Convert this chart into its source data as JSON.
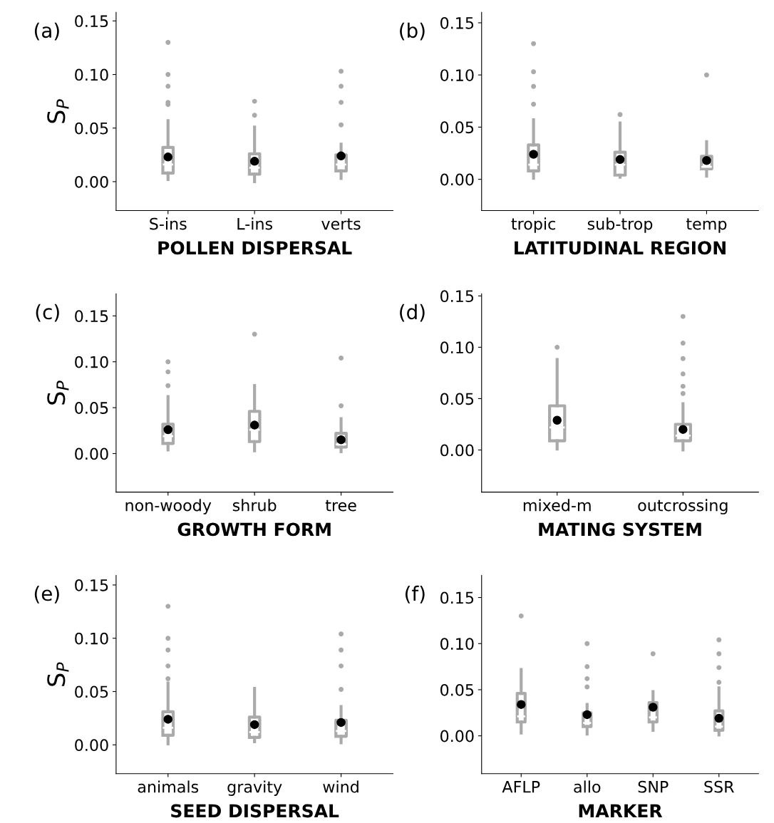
{
  "chart_data": [
    {
      "type": "box",
      "title": "(a)",
      "ylabel": "S$_{P}$",
      "xlabel": "POLLEN DISPERSAL",
      "categories": [
        "S-ins",
        "L-ins",
        "verts"
      ],
      "ylim": [
        -0.027,
        0.158
      ],
      "yticks": [
        {
          "value": 0,
          "label": "0.00"
        },
        {
          "value": 0.05,
          "label": "0.05"
        },
        {
          "value": 0.1,
          "label": "0.10"
        },
        {
          "value": 0.15,
          "label": "0.15"
        }
      ],
      "grid": false,
      "color": "#aaaaaa",
      "boxes": [
        {
          "low": 0.002,
          "q1": 0.008,
          "median": 0.016,
          "q3": 0.032,
          "high": 0.057,
          "mean": 0.023,
          "outliers": [
            0.072,
            0.074,
            0.089,
            0.1,
            0.13
          ]
        },
        {
          "low": 0.0,
          "q1": 0.007,
          "median": 0.013,
          "q3": 0.026,
          "high": 0.051,
          "mean": 0.019,
          "outliers": [
            0.062,
            0.075
          ]
        },
        {
          "low": 0.003,
          "q1": 0.01,
          "median": 0.016,
          "q3": 0.025,
          "high": 0.035,
          "mean": 0.024,
          "outliers": [
            0.053,
            0.074,
            0.089,
            0.103
          ]
        }
      ]
    },
    {
      "type": "box",
      "title": "(b)",
      "xlabel": "LATITUDINAL REGION",
      "categories": [
        "tropic",
        "sub-trop",
        "temp"
      ],
      "ylim": [
        -0.03,
        0.16
      ],
      "yticks": [
        {
          "value": 0,
          "label": "0.00"
        },
        {
          "value": 0.05,
          "label": "0.05"
        },
        {
          "value": 0.1,
          "label": "0.10"
        },
        {
          "value": 0.15,
          "label": "0.15"
        }
      ],
      "grid": false,
      "color": "#aaaaaa",
      "boxes": [
        {
          "low": 0.001,
          "q1": 0.008,
          "median": 0.014,
          "q3": 0.033,
          "high": 0.057,
          "mean": 0.024,
          "outliers": [
            0.072,
            0.089,
            0.103,
            0.13
          ]
        },
        {
          "low": 0.002,
          "q1": 0.004,
          "median": 0.014,
          "q3": 0.026,
          "high": 0.054,
          "mean": 0.019,
          "outliers": [
            0.062
          ]
        },
        {
          "low": 0.003,
          "q1": 0.01,
          "median": 0.012,
          "q3": 0.022,
          "high": 0.036,
          "mean": 0.018,
          "outliers": [
            0.1
          ]
        }
      ]
    },
    {
      "type": "box",
      "title": "(c)",
      "ylabel": "S$_{P}$",
      "xlabel": "GROWTH FORM",
      "categories": [
        "non-woody",
        "shrub",
        "tree"
      ],
      "ylim": [
        -0.042,
        0.174
      ],
      "yticks": [
        {
          "value": 0,
          "label": "0.00"
        },
        {
          "value": 0.05,
          "label": "0.05"
        },
        {
          "value": 0.1,
          "label": "0.10"
        },
        {
          "value": 0.15,
          "label": "0.15"
        }
      ],
      "grid": false,
      "color": "#aaaaaa",
      "boxes": [
        {
          "low": 0.004,
          "q1": 0.011,
          "median": 0.019,
          "q3": 0.032,
          "high": 0.062,
          "mean": 0.026,
          "outliers": [
            0.074,
            0.089,
            0.1
          ]
        },
        {
          "low": 0.003,
          "q1": 0.013,
          "median": 0.026,
          "q3": 0.046,
          "high": 0.074,
          "mean": 0.031,
          "outliers": [
            0.13
          ]
        },
        {
          "low": 0.002,
          "q1": 0.007,
          "median": 0.01,
          "q3": 0.022,
          "high": 0.038,
          "mean": 0.015,
          "outliers": [
            0.052,
            0.104
          ]
        }
      ]
    },
    {
      "type": "box",
      "title": "(d)",
      "xlabel": "MATING SYSTEM",
      "categories": [
        "mixed-m",
        "outcrossing"
      ],
      "ylim": [
        -0.041,
        0.152
      ],
      "yticks": [
        {
          "value": 0,
          "label": "0.00"
        },
        {
          "value": 0.05,
          "label": "0.05"
        },
        {
          "value": 0.1,
          "label": "0.10"
        },
        {
          "value": 0.15,
          "label": "0.15"
        }
      ],
      "grid": false,
      "color": "#aaaaaa",
      "boxes": [
        {
          "low": 0.001,
          "q1": 0.009,
          "median": 0.022,
          "q3": 0.043,
          "high": 0.088,
          "mean": 0.029,
          "outliers": [
            0.1
          ]
        },
        {
          "low": 0.0,
          "q1": 0.009,
          "median": 0.014,
          "q3": 0.025,
          "high": 0.045,
          "mean": 0.02,
          "outliers": [
            0.055,
            0.062,
            0.074,
            0.089,
            0.104,
            0.13
          ]
        }
      ]
    },
    {
      "type": "box",
      "title": "(e)",
      "ylabel": "S$_{P}$",
      "xlabel": "SEED DISPERSAL",
      "categories": [
        "animals",
        "gravity",
        "wind"
      ],
      "ylim": [
        -0.027,
        0.159
      ],
      "yticks": [
        {
          "value": 0,
          "label": "0.00"
        },
        {
          "value": 0.05,
          "label": "0.05"
        },
        {
          "value": 0.1,
          "label": "0.10"
        },
        {
          "value": 0.15,
          "label": "0.15"
        }
      ],
      "grid": false,
      "color": "#aaaaaa",
      "boxes": [
        {
          "low": 0.001,
          "q1": 0.009,
          "median": 0.016,
          "q3": 0.031,
          "high": 0.058,
          "mean": 0.024,
          "outliers": [
            0.062,
            0.074,
            0.089,
            0.1,
            0.13
          ]
        },
        {
          "low": 0.003,
          "q1": 0.007,
          "median": 0.012,
          "q3": 0.026,
          "high": 0.053,
          "mean": 0.019
        },
        {
          "low": 0.002,
          "q1": 0.008,
          "median": 0.013,
          "q3": 0.023,
          "high": 0.036,
          "mean": 0.021,
          "outliers": [
            0.052,
            0.074,
            0.089,
            0.104
          ]
        }
      ]
    },
    {
      "type": "box",
      "title": "(f)",
      "xlabel": "MARKER",
      "categories": [
        "AFLP",
        "allo",
        "SNP",
        "SSR"
      ],
      "ylim": [
        -0.041,
        0.174
      ],
      "yticks": [
        {
          "value": 0,
          "label": "0.00"
        },
        {
          "value": 0.05,
          "label": "0.05"
        },
        {
          "value": 0.1,
          "label": "0.10"
        },
        {
          "value": 0.15,
          "label": "0.15"
        }
      ],
      "grid": false,
      "color": "#aaaaaa",
      "boxes": [
        {
          "low": 0.003,
          "q1": 0.015,
          "median": 0.021,
          "q3": 0.046,
          "high": 0.072,
          "mean": 0.034,
          "outliers": [
            0.13
          ]
        },
        {
          "low": 0.002,
          "q1": 0.01,
          "median": 0.014,
          "q3": 0.025,
          "high": 0.034,
          "mean": 0.023,
          "outliers": [
            0.053,
            0.062,
            0.075,
            0.1
          ]
        },
        {
          "low": 0.006,
          "q1": 0.015,
          "median": 0.02,
          "q3": 0.036,
          "high": 0.048,
          "mean": 0.031,
          "outliers": [
            0.089
          ]
        },
        {
          "low": 0.001,
          "q1": 0.006,
          "median": 0.01,
          "q3": 0.027,
          "high": 0.052,
          "mean": 0.019,
          "outliers": [
            0.058,
            0.074,
            0.089,
            0.104
          ]
        }
      ]
    }
  ]
}
